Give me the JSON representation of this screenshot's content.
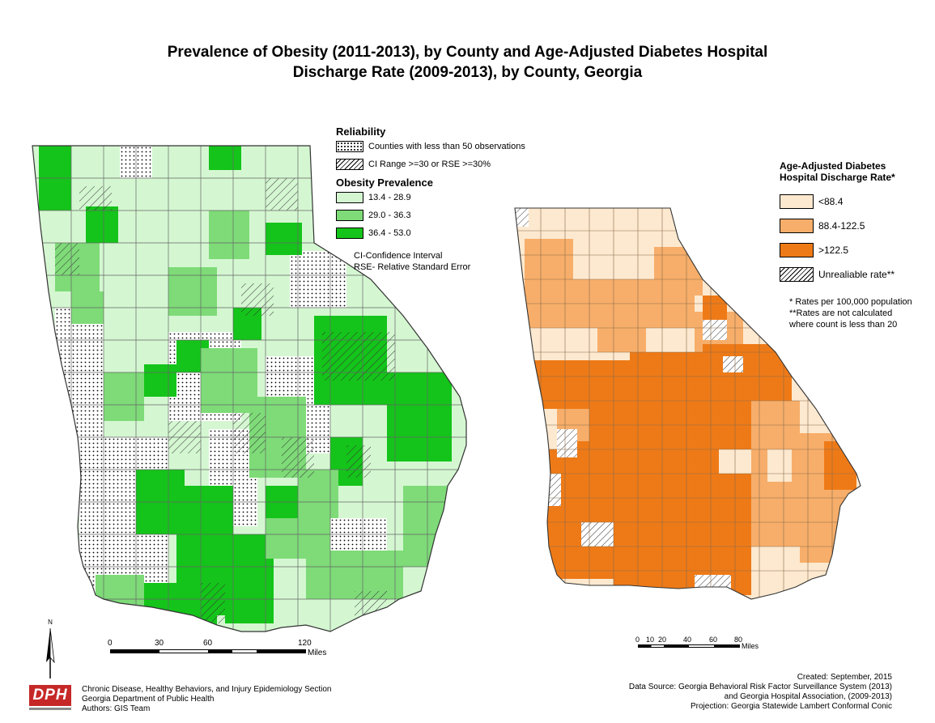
{
  "title": {
    "line1": "Prevalence of Obesity (2011-2013), by County and Age-Adjusted Diabetes Hospital",
    "line2": "Discharge Rate  (2009-2013), by County, Georgia"
  },
  "left_legend": {
    "reliability_heading": "Reliability",
    "reliability_items": [
      {
        "label": "Counties with less than 50 observations",
        "pattern": "dots"
      },
      {
        "label": "CI Range >=30 or RSE >=30%",
        "pattern": "hatch"
      }
    ],
    "obesity_heading": "Obesity Prevalence",
    "obesity_classes": [
      {
        "label": "13.4 - 28.9",
        "color": "#d4f7d1"
      },
      {
        "label": "29.0 - 36.3",
        "color": "#7edb78"
      },
      {
        "label": "36.4 - 53.0",
        "color": "#14c41a"
      }
    ],
    "notes": [
      "CI-Confidence Interval",
      "RSE- Relative Standard Error"
    ]
  },
  "right_legend": {
    "heading_line1": "Age-Adjusted Diabetes",
    "heading_line2": "Hospital Discharge Rate*",
    "classes": [
      {
        "label": "<88.4",
        "color": "#fde9cf"
      },
      {
        "label": "88.4-122.5",
        "color": "#f7ae6a"
      },
      {
        "label": ">122.5",
        "color": "#ee7a17"
      },
      {
        "label": "Unrealiable rate**",
        "pattern": "hatch"
      }
    ],
    "notes": [
      "* Rates per 100,000 population",
      "**Rates are not calculated",
      "where count is less than 20"
    ]
  },
  "left_scale": {
    "ticks": [
      "0",
      "30",
      "60",
      "120"
    ],
    "unit": "Miles"
  },
  "right_scale": {
    "ticks": [
      "0",
      "10",
      "20",
      "40",
      "60",
      "80"
    ],
    "unit": "Miles"
  },
  "north_arrow": {
    "label": "N"
  },
  "logo": {
    "text": "DPH"
  },
  "credits_left": [
    "Chronic Disease, Healthy Behaviors, and Injury Epidemiology Section",
    "Georgia Department of Public Health",
    "Authors: GIS Team"
  ],
  "credits_right": [
    "Created:  September, 2015",
    "Data Source:  Georgia Behavioral Risk Factor Surveillance System (2013)",
    "and Georgia Hospital Association, (2009-2013)",
    "Projection: Georgia Statewide Lambert Conformal Conic"
  ]
}
